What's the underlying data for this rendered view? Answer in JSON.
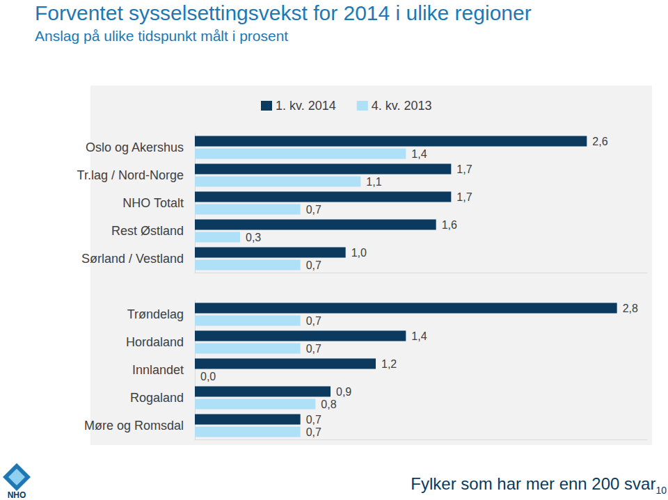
{
  "title": "Forventet sysselsettingsvekst for 2014 i ulike regioner",
  "subtitle": "Anslag på ulike tidspunkt målt i prosent",
  "footer": {
    "text": "Fylker som har mer enn 200 svar",
    "page": "10",
    "logo": "NHO"
  },
  "chart_data": [
    {
      "type": "bar",
      "orientation": "horizontal",
      "data_labels": true,
      "tick_labels": "y",
      "legend": "top",
      "categories": [
        "Oslo og Akershus",
        "Tr.lag / Nord-Norge",
        "NHO Totalt",
        "Rest Østland",
        "Sørland / Vestland"
      ],
      "xlim": [
        0,
        3
      ],
      "series": [
        {
          "name": "1. kv. 2014",
          "color": "#0b3a5e",
          "values": [
            2.6,
            1.7,
            1.7,
            1.6,
            1.0
          ],
          "value_labels": [
            "2,6",
            "1,7",
            "1,7",
            "1,6",
            "1,0"
          ]
        },
        {
          "name": "4. kv. 2013",
          "color": "#aee0f8",
          "values": [
            1.4,
            1.1,
            0.7,
            0.3,
            0.7
          ],
          "value_labels": [
            "1,4",
            "1,1",
            "0,7",
            "0,3",
            "0,7"
          ]
        }
      ]
    },
    {
      "type": "bar",
      "orientation": "horizontal",
      "data_labels": true,
      "tick_labels": "y",
      "categories": [
        "Trøndelag",
        "Hordaland",
        "Innlandet",
        "Rogaland",
        "Møre og Romsdal"
      ],
      "xlim": [
        0,
        3
      ],
      "series": [
        {
          "name": "1. kv. 2014",
          "color": "#0b3a5e",
          "values": [
            2.8,
            1.4,
            1.2,
            0.9,
            0.7
          ],
          "value_labels": [
            "2,8",
            "1,4",
            "1,2",
            "0,9",
            "0,7"
          ]
        },
        {
          "name": "4. kv. 2013",
          "color": "#aee0f8",
          "values": [
            0.7,
            0.7,
            0.0,
            0.8,
            0.7
          ],
          "value_labels": [
            "0,7",
            "0,7",
            "0,0",
            "0,8",
            "0,7"
          ]
        }
      ]
    }
  ]
}
